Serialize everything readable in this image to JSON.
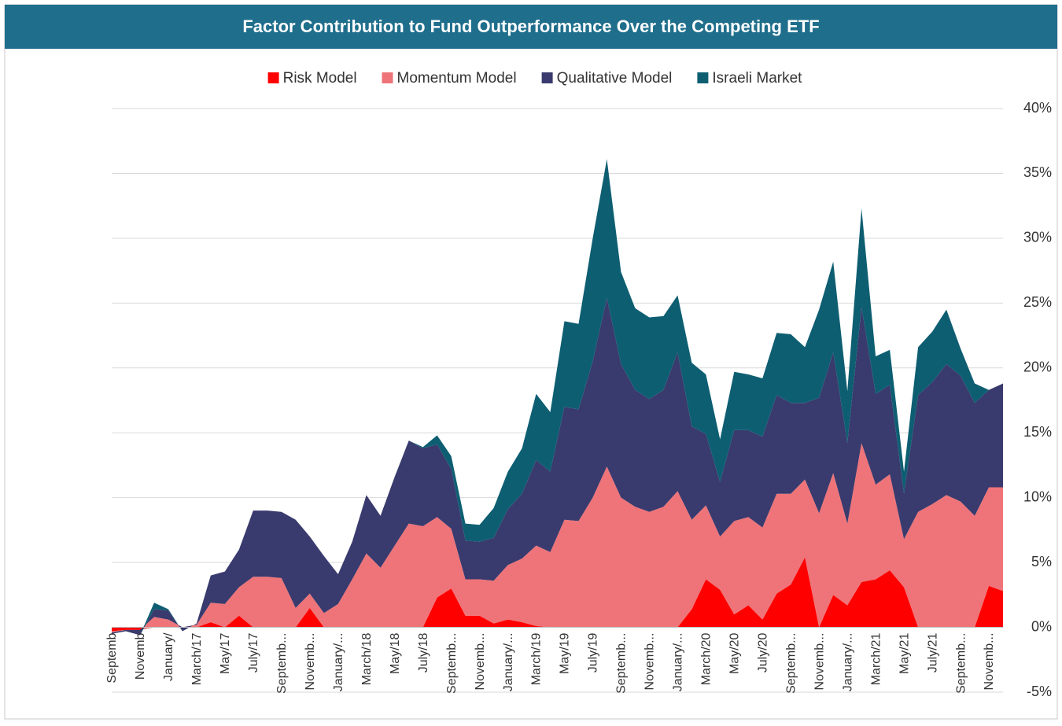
{
  "chart_data": {
    "type": "stacked_area",
    "title": "Factor Contribution to Fund Outperformance Over the Competing ETF",
    "categories": [
      "Septemb",
      null,
      "Novemb",
      null,
      "January/",
      null,
      "March/17",
      null,
      "May/17",
      null,
      "July/17",
      null,
      "Septemb...",
      null,
      "Novemb...",
      null,
      "January/...",
      null,
      "March/18",
      null,
      "May/18",
      null,
      "July/18",
      null,
      "Septemb...",
      null,
      "Novemb...",
      null,
      "January/...",
      null,
      "March/19",
      null,
      "May/19",
      null,
      "July/19",
      null,
      "Septemb...",
      null,
      "Novemb...",
      null,
      "January/...",
      null,
      "March/20",
      null,
      "May/20",
      null,
      "July/20",
      null,
      "Septemb...",
      null,
      "Novemb...",
      null,
      "January/...",
      null,
      "March/21",
      null,
      "May/21",
      null,
      "July/21",
      null,
      "Septemb...",
      null,
      "Novemb...",
      null
    ],
    "series": [
      {
        "name": "Risk Model",
        "color": "#ff0000",
        "values": [
          -0.3,
          -0.2,
          -0.2,
          0,
          0,
          0,
          0,
          0.4,
          0,
          0.9,
          0,
          0,
          0,
          0,
          1.5,
          0,
          0,
          0,
          0,
          0,
          0,
          0,
          0,
          2.3,
          3.0,
          0.9,
          0.9,
          0.3,
          0.6,
          0.4,
          0.1,
          0,
          0,
          0,
          0,
          0,
          0,
          0,
          0,
          0,
          0,
          1.4,
          3.7,
          2.9,
          1.0,
          1.7,
          0.6,
          2.6,
          3.3,
          5.4,
          0,
          2.5,
          1.7,
          3.5,
          3.7,
          4.4,
          3.1,
          0,
          0,
          0,
          0,
          0,
          3.2,
          2.8
        ]
      },
      {
        "name": "Momentum Model",
        "color": "#ee7479",
        "values": [
          -0.1,
          0,
          0,
          0.8,
          0.6,
          0,
          0.2,
          1.5,
          1.8,
          2.2,
          3.9,
          3.9,
          3.8,
          1.5,
          1.1,
          1.1,
          1.8,
          3.7,
          5.7,
          4.6,
          6.3,
          8.0,
          7.8,
          6.2,
          4.6,
          2.8,
          2.8,
          3.3,
          4.2,
          4.9,
          6.2,
          5.8,
          8.3,
          8.2,
          10.0,
          12.4,
          10.0,
          9.3,
          8.9,
          9.3,
          10.5,
          6.9,
          5.7,
          4.1,
          7.2,
          6.8,
          7.1,
          7.7,
          7.0,
          6.0,
          8.8,
          9.4,
          6.3,
          10.7,
          7.3,
          7.4,
          3.7,
          8.9,
          9.5,
          10.2,
          9.7,
          8.6,
          7.6,
          8.0
        ]
      },
      {
        "name": "Qualitative Model",
        "color": "#393a6d",
        "values": [
          -0.1,
          -0.1,
          -0.4,
          0.6,
          0.7,
          -0.3,
          0.1,
          2.1,
          2.5,
          2.9,
          5.1,
          5.1,
          5.1,
          6.8,
          4.4,
          4.4,
          2.3,
          2.9,
          4.5,
          4.0,
          5.3,
          6.4,
          6.0,
          5.6,
          4.6,
          3.0,
          2.9,
          3.3,
          4.3,
          5.0,
          6.6,
          6.2,
          8.7,
          8.6,
          10.5,
          13.0,
          10.3,
          9.0,
          8.7,
          9.0,
          10.7,
          7.2,
          5.5,
          4.2,
          7.0,
          6.7,
          7.0,
          7.6,
          7.0,
          5.9,
          8.9,
          9.3,
          6.2,
          10.5,
          7.0,
          6.9,
          3.5,
          9.0,
          9.4,
          10.1,
          9.7,
          8.7,
          7.5,
          8.0
        ]
      },
      {
        "name": "Israeli Market",
        "color": "#0e5e72",
        "values": [
          0,
          0,
          0,
          0.5,
          0.1,
          0,
          0,
          0,
          0,
          0,
          0,
          0,
          0,
          0,
          0,
          0,
          0,
          0,
          0,
          0,
          0,
          0,
          0.1,
          0.7,
          1.0,
          1.3,
          1.3,
          2.3,
          2.9,
          3.5,
          5.1,
          4.6,
          6.6,
          6.6,
          9.5,
          10.7,
          7.1,
          6.3,
          6.3,
          5.7,
          4.4,
          4.9,
          4.6,
          3.3,
          4.5,
          4.3,
          4.5,
          4.8,
          5.3,
          4.3,
          6.8,
          7.0,
          4.0,
          7.6,
          2.9,
          2.7,
          1.7,
          3.7,
          3.9,
          4.2,
          2.1,
          1.5,
          0,
          0
        ]
      }
    ],
    "ylim": [
      -5,
      40
    ],
    "yticks": [
      {
        "value": -5,
        "label": "-5%"
      },
      {
        "value": 0,
        "label": "0%"
      },
      {
        "value": 5,
        "label": "5%"
      },
      {
        "value": 10,
        "label": "10%"
      },
      {
        "value": 15,
        "label": "15%"
      },
      {
        "value": 20,
        "label": "20%"
      },
      {
        "value": 25,
        "label": "25%"
      },
      {
        "value": 30,
        "label": "30%"
      },
      {
        "value": 35,
        "label": "35%"
      },
      {
        "value": 40,
        "label": "40%"
      }
    ],
    "grid": true,
    "legend": "top"
  }
}
